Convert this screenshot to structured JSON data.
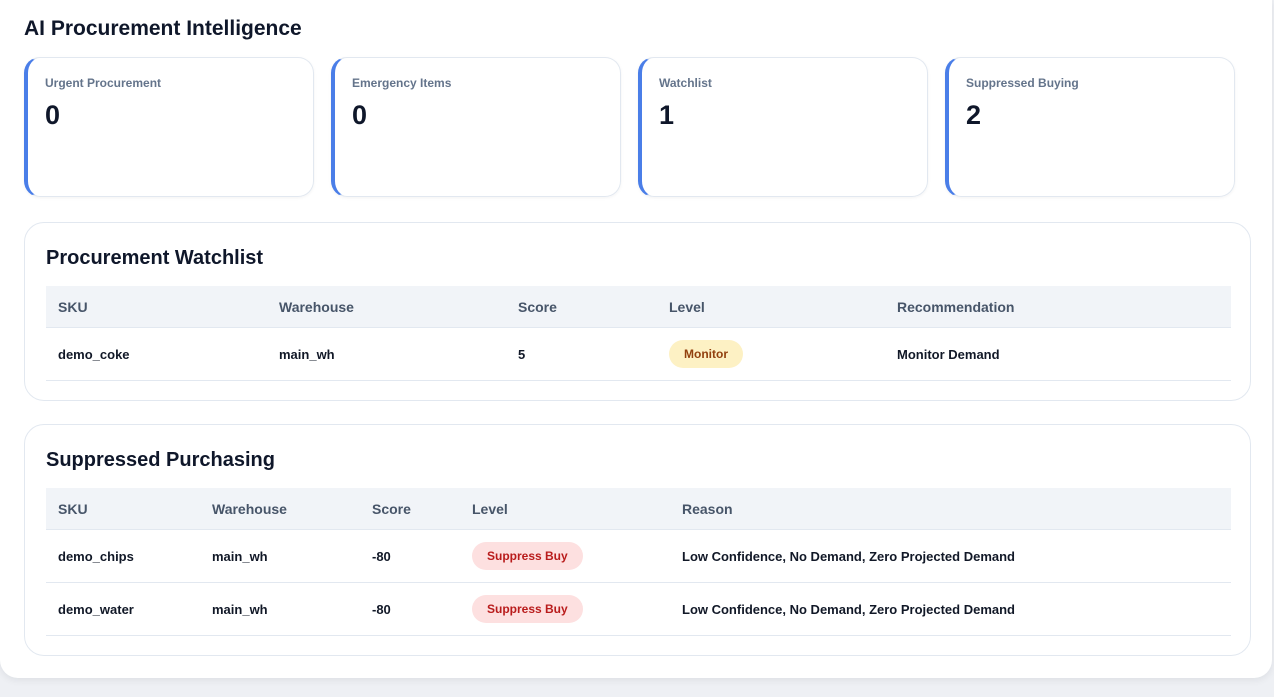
{
  "title": "AI Procurement Intelligence",
  "kpis": [
    {
      "label": "Urgent Procurement",
      "value": 0
    },
    {
      "label": "Emergency Items",
      "value": 0
    },
    {
      "label": "Watchlist",
      "value": 1
    },
    {
      "label": "Suppressed Buying",
      "value": 2
    }
  ],
  "watchlist": {
    "title": "Procurement Watchlist",
    "columns": [
      "SKU",
      "Warehouse",
      "Score",
      "Level",
      "Recommendation"
    ],
    "rows": [
      [
        "demo_coke",
        "main_wh",
        5,
        "Monitor",
        "Monitor Demand"
      ]
    ]
  },
  "suppressed": {
    "title": "Suppressed Purchasing",
    "columns": [
      "SKU",
      "Warehouse",
      "Score",
      "Level",
      "Reason"
    ],
    "rows": [
      [
        "demo_chips",
        "main_wh",
        -80,
        "Suppress Buy",
        "Low Confidence, No Demand, Zero Projected Demand"
      ],
      [
        "demo_water",
        "main_wh",
        -80,
        "Suppress Buy",
        "Low Confidence, No Demand, Zero Projected Demand"
      ]
    ]
  }
}
